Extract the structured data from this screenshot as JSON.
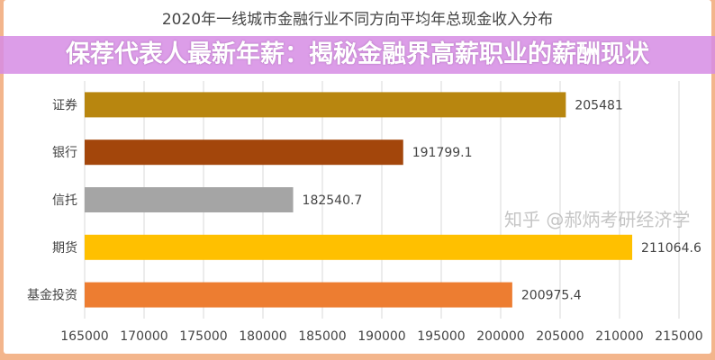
{
  "chart_data": {
    "type": "bar",
    "orientation": "horizontal",
    "title": "2020年一线城市金融行业不同方向平均年总现金收入分布",
    "categories": [
      "证券",
      "银行",
      "信托",
      "期货",
      "基金投资"
    ],
    "values": [
      205481,
      191799.1,
      182540.7,
      211064.6,
      200975.4
    ],
    "value_labels": [
      "205481",
      "191799.1",
      "182540.7",
      "211064.6",
      "200975.4"
    ],
    "colors": [
      "#b8860f",
      "#a3460b",
      "#a5a5a5",
      "#ffc000",
      "#ed7d31"
    ],
    "xlim": [
      165000,
      215000
    ],
    "xticks": [
      "165000",
      "170000",
      "175000",
      "180000",
      "185000",
      "190000",
      "195000",
      "200000",
      "205000",
      "210000",
      "215000"
    ],
    "grid": true
  },
  "banner": {
    "text": "保荐代表人最新年薪：揭秘金融界高薪职业的薪酬现状"
  },
  "watermark": "知乎 @郝炳考研经济学"
}
